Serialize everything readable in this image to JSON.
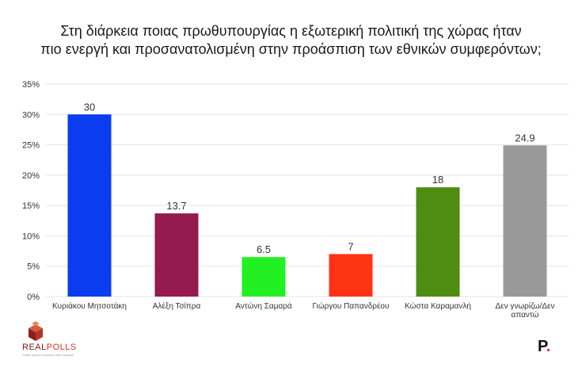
{
  "title_lines": [
    "Στη διάρκεια ποιας πρωθυπουργίας η εξωτερική πολιτική της χώρας ήταν",
    "πιο ενεργή και προσανατολισμένη στην προάσπιση των εθνικών συμφερόντων;"
  ],
  "chart_data": {
    "type": "bar",
    "categories": [
      [
        "Κυριάκου Μητσοτάκη"
      ],
      [
        "Αλέξη Τσίπρα"
      ],
      [
        "Αντώνη Σαμαρά"
      ],
      [
        "Γιώργου Παπανδρέου"
      ],
      [
        "Κώστα Καραμανλή"
      ],
      [
        "Δεν γνωρίζω/Δεν",
        "απαντώ"
      ]
    ],
    "values": [
      30,
      13.7,
      6.5,
      7,
      18,
      24.9
    ],
    "value_labels": [
      "30",
      "13.7",
      "6.5",
      "7",
      "18",
      "24.9"
    ],
    "colors": [
      "#0a3df0",
      "#941a4f",
      "#22f022",
      "#ff3414",
      "#4e8c12",
      "#999999"
    ],
    "ylim": [
      0,
      35
    ],
    "yticks": [
      0,
      5,
      10,
      15,
      20,
      25,
      30,
      35
    ],
    "ytick_labels": [
      "0%",
      "5%",
      "10%",
      "15%",
      "20%",
      "25%",
      "30%",
      "35%"
    ],
    "grid": true,
    "legend": "none"
  },
  "logos": {
    "left_text_dark": "REAL",
    "left_text_accent": "POLLS",
    "left_tagline": "Public opinion research and analysis",
    "right_letter": "P",
    "right_dot": "."
  },
  "colors": {
    "grid": "#e3e3e3",
    "logo_dark": "#7a1a1a",
    "logo_accent": "#c6371f"
  }
}
